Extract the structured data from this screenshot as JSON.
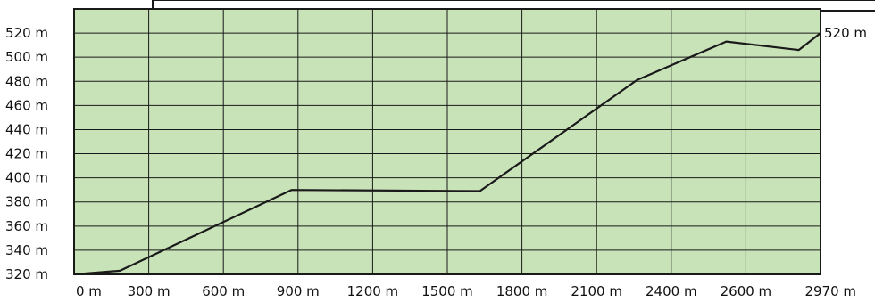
{
  "chart_data": {
    "type": "line",
    "title": "",
    "xlabel": "",
    "ylabel": "",
    "x_tick_labels": [
      "0 m",
      "300 m",
      "600 m",
      "900 m",
      "1200 m",
      "1500 m",
      "1800 m",
      "2100 m",
      "2400 m",
      "2600 m",
      "2970 m"
    ],
    "y_tick_labels": [
      "320 m",
      "340 m",
      "360 m",
      "380 m",
      "400 m",
      "420 m",
      "440 m",
      "460 m",
      "480 m",
      "500 m",
      "520 m"
    ],
    "y_ticks": [
      320,
      340,
      360,
      380,
      400,
      420,
      440,
      460,
      480,
      500,
      520
    ],
    "end_label": "520 m",
    "xlim": [
      0,
      3090
    ],
    "ylim": [
      320,
      540
    ],
    "grid": true,
    "series": [
      {
        "x": [
          0,
          190,
          900,
          1680,
          2330,
          2700,
          3000,
          3090
        ],
        "y": [
          320,
          323,
          390,
          389,
          481,
          513,
          506,
          520
        ]
      }
    ]
  },
  "colors": {
    "plot_background": "#c9e3b9",
    "grid": "#1a1a1a",
    "line": "#1a1a1a",
    "text": "#111111"
  }
}
